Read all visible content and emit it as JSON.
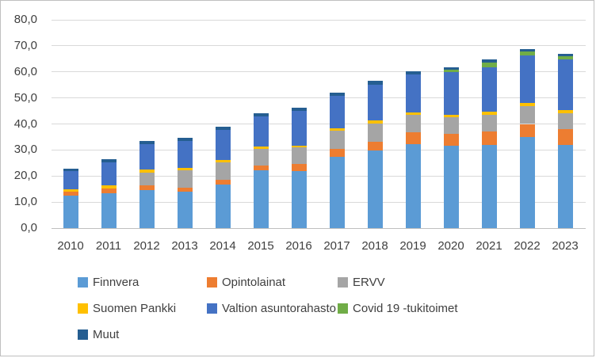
{
  "window": {
    "background": "#FFFFFF",
    "border_color": "#BFBFBF"
  },
  "chart_data": {
    "type": "bar",
    "stacked": true,
    "title": "",
    "xlabel": "",
    "ylabel": "",
    "categories": [
      "2010",
      "2011",
      "2012",
      "2013",
      "2014",
      "2015",
      "2016",
      "2017",
      "2018",
      "2019",
      "2020",
      "2021",
      "2022",
      "2023"
    ],
    "series": [
      {
        "name": "Finnvera",
        "color": "#5B9BD5",
        "values": [
          12.4,
          13.4,
          14.6,
          14.1,
          16.8,
          22.3,
          21.9,
          27.3,
          29.7,
          32.2,
          31.5,
          31.9,
          35.0,
          32.0
        ]
      },
      {
        "name": "Opintolainat",
        "color": "#ED7D31",
        "values": [
          1.5,
          1.9,
          1.9,
          1.5,
          1.8,
          1.8,
          2.7,
          3.2,
          3.5,
          4.6,
          4.7,
          5.2,
          5.0,
          5.9
        ]
      },
      {
        "name": "ERVV",
        "color": "#A5A5A5",
        "values": [
          0.0,
          0.0,
          4.9,
          6.7,
          6.6,
          6.4,
          6.3,
          6.9,
          7.1,
          6.7,
          6.4,
          6.5,
          6.9,
          6.2
        ]
      },
      {
        "name": "Suomen Pankki",
        "color": "#FFC000",
        "values": [
          0.9,
          1.0,
          1.0,
          0.9,
          0.9,
          0.7,
          0.8,
          1.0,
          1.0,
          0.9,
          0.9,
          1.1,
          1.3,
          1.3
        ]
      },
      {
        "name": "Valtion asuntorahasto",
        "color": "#4472C4",
        "values": [
          7.0,
          8.8,
          9.8,
          10.4,
          11.5,
          11.7,
          13.4,
          12.4,
          13.9,
          14.6,
          16.3,
          17.0,
          18.1,
          19.3
        ]
      },
      {
        "name": "Covid 19 -tukitoimet",
        "color": "#70AD47",
        "values": [
          0.0,
          0.0,
          0.0,
          0.0,
          0.0,
          0.0,
          0.0,
          0.0,
          0.0,
          0.0,
          1.1,
          1.9,
          1.4,
          1.3
        ]
      },
      {
        "name": "Muut",
        "color": "#255E91",
        "values": [
          1.0,
          1.3,
          1.2,
          1.2,
          1.2,
          1.3,
          1.2,
          1.3,
          1.3,
          1.1,
          0.8,
          1.1,
          1.0,
          1.0
        ]
      }
    ],
    "ylim": [
      0,
      80
    ],
    "y_tick_step": 10,
    "y_tick_labels": [
      "0,0",
      "10,0",
      "20,0",
      "30,0",
      "40,0",
      "50,0",
      "60,0",
      "70,0",
      "80,0"
    ],
    "grid": true,
    "gridline_color": "#D9D9D9",
    "axis_line_color": "#BFBFBF",
    "label_color": "#404040",
    "legend_position": "bottom",
    "legend_rows": [
      [
        0,
        1,
        2
      ],
      [
        3,
        4,
        5
      ],
      [
        6
      ]
    ]
  }
}
